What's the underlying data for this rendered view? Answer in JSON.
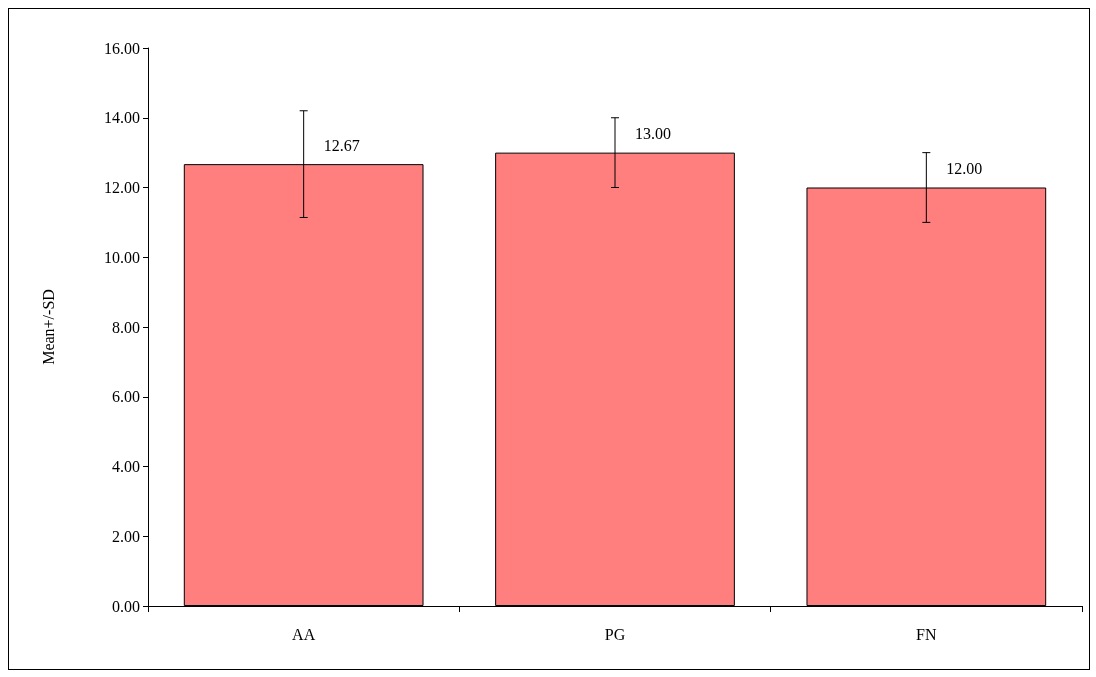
{
  "chart_data": {
    "type": "bar",
    "ylabel": "Mean+/-SD",
    "categories": [
      "AA",
      "PG",
      "FN"
    ],
    "values": [
      12.67,
      13.0,
      12.0
    ],
    "errors": [
      1.53,
      1.0,
      1.0
    ],
    "value_labels": [
      "12.67",
      "13.00",
      "12.00"
    ],
    "color": "#ff7f7f",
    "ylim": [
      0,
      16
    ],
    "yticks": [
      {
        "value": 0,
        "label": "0.00"
      },
      {
        "value": 2,
        "label": "2.00"
      },
      {
        "value": 4,
        "label": "4.00"
      },
      {
        "value": 6,
        "label": "6.00"
      },
      {
        "value": 8,
        "label": "8.00"
      },
      {
        "value": 10,
        "label": "10.00"
      },
      {
        "value": 12,
        "label": "12.00"
      },
      {
        "value": 14,
        "label": "14.00"
      },
      {
        "value": 16,
        "label": "16.00"
      }
    ],
    "grid": false
  }
}
